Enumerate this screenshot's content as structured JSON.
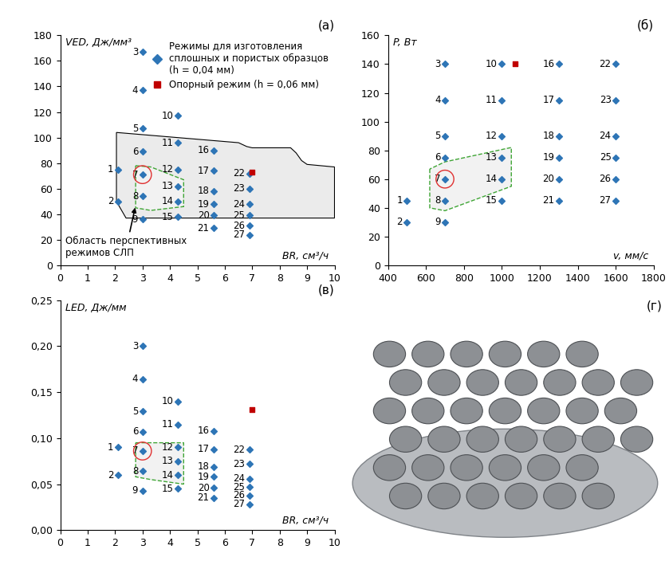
{
  "chart_data": [
    {
      "type": "scatter",
      "title": "(а)",
      "x_label": "BR, см³/ч",
      "y_label": "VED, Дж/мм³",
      "xlim": [
        0,
        10
      ],
      "xticks": [
        0,
        1,
        2,
        3,
        4,
        5,
        6,
        7,
        8,
        9,
        10
      ],
      "ylim": [
        0,
        180
      ],
      "yticks": [
        0,
        20,
        40,
        60,
        80,
        100,
        120,
        140,
        160,
        180
      ],
      "legend": "upper right",
      "series": [
        {
          "name": "Режимы для изготовления\nсплошных и пористых образцов\n(h = 0,04 мм)",
          "color": "#2e75b6",
          "marker": "diamond",
          "x": [
            2.1,
            2.1,
            3.0,
            3.0,
            3.0,
            3.0,
            3.0,
            3.0,
            3.0,
            4.3,
            4.3,
            4.3,
            4.3,
            4.3,
            4.3,
            5.6,
            5.6,
            5.6,
            5.6,
            5.6,
            5.6,
            6.9,
            6.9,
            6.9,
            6.9,
            6.9,
            6.9
          ],
          "values": [
            75,
            50,
            167,
            137,
            107,
            89,
            71,
            54,
            36,
            117,
            96,
            75,
            62,
            50,
            38,
            90,
            74,
            58,
            48,
            39,
            29,
            72,
            60,
            48,
            39,
            31,
            24
          ],
          "labels": [
            "1",
            "2",
            "3",
            "4",
            "5",
            "6",
            "7",
            "8",
            "9",
            "10",
            "11",
            "12",
            "13",
            "14",
            "15",
            "16",
            "17",
            "18",
            "19",
            "20",
            "21",
            "22",
            "23",
            "24",
            "25",
            "26",
            "27"
          ],
          "highlight_labels": [
            "7"
          ]
        },
        {
          "name": "Опорный режим (h = 0,06 мм)",
          "color": "#c00000",
          "marker": "square",
          "x": [
            7.0
          ],
          "values": [
            73
          ]
        }
      ],
      "region": [
        [
          2.05,
          104
        ],
        [
          6.5,
          96
        ],
        [
          6.8,
          93
        ],
        [
          7.0,
          92
        ],
        [
          8.4,
          92
        ],
        [
          8.6,
          88
        ],
        [
          8.8,
          82
        ],
        [
          9.0,
          79
        ],
        [
          10,
          77
        ],
        [
          10,
          37
        ],
        [
          2.4,
          37
        ],
        [
          2.05,
          50
        ]
      ],
      "promising_region": [
        [
          2.75,
          78
        ],
        [
          3.3,
          77
        ],
        [
          4.5,
          67
        ],
        [
          4.5,
          46
        ],
        [
          3.3,
          43
        ],
        [
          2.75,
          45
        ]
      ],
      "annotation": {
        "text": "Область перспективных\nрежимов СЛП",
        "x": 2.75,
        "y": 47
      }
    },
    {
      "type": "scatter",
      "title": "(б)",
      "x_label": "v, мм/с",
      "y_label": "P, Вт",
      "xlim": [
        400,
        1800
      ],
      "xticks": [
        400,
        600,
        800,
        1000,
        1200,
        1400,
        1600,
        1800
      ],
      "ylim": [
        0,
        160
      ],
      "yticks": [
        0,
        20,
        40,
        60,
        80,
        100,
        120,
        140,
        160
      ],
      "series": [
        {
          "color": "#2e75b6",
          "marker": "diamond",
          "x": [
            500,
            500,
            700,
            700,
            700,
            700,
            700,
            700,
            700,
            1000,
            1000,
            1000,
            1000,
            1000,
            1000,
            1300,
            1300,
            1300,
            1300,
            1300,
            1300,
            1600,
            1600,
            1600,
            1600,
            1600,
            1600
          ],
          "values": [
            45,
            30,
            140,
            115,
            90,
            75,
            60,
            45,
            30,
            140,
            115,
            90,
            75,
            60,
            45,
            140,
            115,
            90,
            75,
            60,
            45,
            140,
            115,
            90,
            75,
            60,
            45
          ],
          "labels": [
            "1",
            "2",
            "3",
            "4",
            "5",
            "6",
            "7",
            "8",
            "9",
            "10",
            "11",
            "12",
            "13",
            "14",
            "15",
            "16",
            "17",
            "18",
            "19",
            "20",
            "21",
            "22",
            "23",
            "24",
            "25",
            "26",
            "27"
          ],
          "highlight_labels": [
            "7"
          ]
        },
        {
          "color": "#c00000",
          "marker": "square",
          "x": [
            1070
          ],
          "values": [
            140
          ]
        }
      ],
      "promising_region": [
        [
          620,
          67
        ],
        [
          620,
          40
        ],
        [
          700,
          38
        ],
        [
          1050,
          55
        ],
        [
          1050,
          82
        ],
        [
          700,
          72
        ]
      ]
    },
    {
      "type": "scatter",
      "title": "(в)",
      "x_label": "BR, см³/ч",
      "y_label": "LED, Дж/мм",
      "xlim": [
        0,
        10
      ],
      "xticks": [
        0,
        1,
        2,
        3,
        4,
        5,
        6,
        7,
        8,
        9,
        10
      ],
      "ylim": [
        0,
        0.25
      ],
      "yticks": [
        {
          "value": 0,
          "label": "0,00"
        },
        {
          "value": 0.05,
          "label": "0,05"
        },
        {
          "value": 0.1,
          "label": "0,10"
        },
        {
          "value": 0.15,
          "label": "0,15"
        },
        {
          "value": 0.2,
          "label": "0,20"
        },
        {
          "value": 0.25,
          "label": "0,25"
        }
      ],
      "series": [
        {
          "color": "#2e75b6",
          "marker": "diamond",
          "x": [
            2.1,
            2.1,
            3.0,
            3.0,
            3.0,
            3.0,
            3.0,
            3.0,
            3.0,
            4.3,
            4.3,
            4.3,
            4.3,
            4.3,
            4.3,
            5.6,
            5.6,
            5.6,
            5.6,
            5.6,
            5.6,
            6.9,
            6.9,
            6.9,
            6.9,
            6.9,
            6.9
          ],
          "values": [
            0.09,
            0.06,
            0.2,
            0.164,
            0.129,
            0.107,
            0.086,
            0.064,
            0.043,
            0.14,
            0.115,
            0.09,
            0.075,
            0.06,
            0.045,
            0.108,
            0.088,
            0.069,
            0.058,
            0.046,
            0.035,
            0.0875,
            0.072,
            0.056,
            0.047,
            0.0375,
            0.028
          ],
          "labels": [
            "1",
            "2",
            "3",
            "4",
            "5",
            "6",
            "7",
            "8",
            "9",
            "10",
            "11",
            "12",
            "13",
            "14",
            "15",
            "16",
            "17",
            "18",
            "19",
            "20",
            "21",
            "22",
            "23",
            "24",
            "25",
            "26",
            "27"
          ],
          "highlight_labels": [
            "7"
          ]
        },
        {
          "color": "#c00000",
          "marker": "square",
          "x": [
            7.0
          ],
          "values": [
            0.131
          ]
        }
      ],
      "promising_region": [
        [
          2.75,
          0.095
        ],
        [
          4.5,
          0.095
        ],
        [
          4.5,
          0.05
        ],
        [
          3.3,
          0.055
        ],
        [
          2.75,
          0.058
        ]
      ]
    }
  ],
  "photo_panel": {
    "title": "(г)"
  }
}
